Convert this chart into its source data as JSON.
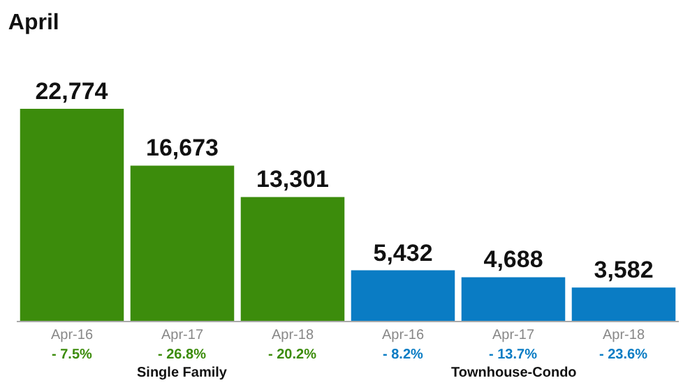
{
  "chart_data": {
    "type": "bar",
    "title": "April",
    "categories": [
      "Apr-16",
      "Apr-17",
      "Apr-18",
      "Apr-16",
      "Apr-17",
      "Apr-18"
    ],
    "values": [
      22774,
      16673,
      13301,
      5432,
      4688,
      3582
    ],
    "colors": [
      "#3c8c0c",
      "#3c8c0c",
      "#3c8c0c",
      "#0a7cc4",
      "#0a7cc4",
      "#0a7cc4"
    ],
    "value_labels": [
      "22,774",
      "16,673",
      "13,301",
      "5,432",
      "4,688",
      "3,582"
    ],
    "annotations": [
      "- 7.5%",
      "- 26.8%",
      "- 20.2%",
      "- 8.2%",
      "- 13.7%",
      "- 23.6%",
      "Single Family",
      "Townhouse-Condo"
    ],
    "grid": false,
    "legend": false
  }
}
